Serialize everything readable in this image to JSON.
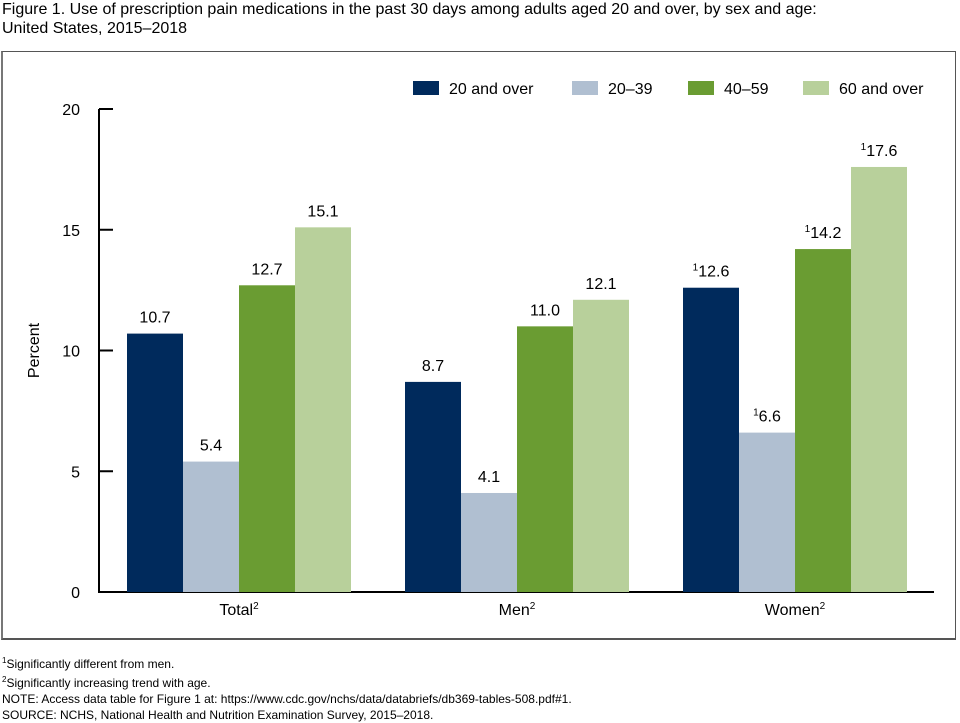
{
  "title_line1": "Figure 1. Use of prescription pain medications in the past 30 days among adults aged 20 and over, by sex and age:",
  "title_line2": "United States, 2015–2018",
  "chart_data": {
    "type": "bar",
    "title": "Use of prescription pain medications in the past 30 days among adults aged 20 and over, by sex and age: United States, 2015–2018",
    "xlabel": "",
    "ylabel": "Percent",
    "ylim": [
      0,
      20
    ],
    "yticks": [
      0,
      5,
      10,
      15,
      20
    ],
    "grid": false,
    "legend_position": "top-right",
    "categories": [
      {
        "label": "Total",
        "sup": "2"
      },
      {
        "label": "Men",
        "sup": "2"
      },
      {
        "label": "Women",
        "sup": "2"
      }
    ],
    "series": [
      {
        "name": "20 and over",
        "color": "#002a5c",
        "values": [
          10.7,
          8.7,
          12.6
        ],
        "label_sup": [
          "",
          "",
          "1"
        ]
      },
      {
        "name": "20–39",
        "color": "#b0bfd1",
        "values": [
          5.4,
          4.1,
          6.6
        ],
        "label_sup": [
          "",
          "",
          "1"
        ]
      },
      {
        "name": "40–59",
        "color": "#6a9c32",
        "values": [
          12.7,
          11.0,
          14.2
        ],
        "label_sup": [
          "",
          "",
          "1"
        ]
      },
      {
        "name": "60 and over",
        "color": "#b8d09b",
        "values": [
          15.1,
          12.1,
          17.6
        ],
        "label_sup": [
          "",
          "",
          "1"
        ]
      }
    ]
  },
  "footnotes": [
    {
      "sup": "1",
      "text": "Significantly different from men."
    },
    {
      "sup": "2",
      "text": "Significantly increasing trend with age."
    },
    {
      "sup": "",
      "text": "NOTE: Access data table for Figure 1 at: https://www.cdc.gov/nchs/data/databriefs/db369-tables-508.pdf#1."
    },
    {
      "sup": "",
      "text": "SOURCE: NCHS, National Health and Nutrition Examination Survey, 2015–2018."
    }
  ]
}
